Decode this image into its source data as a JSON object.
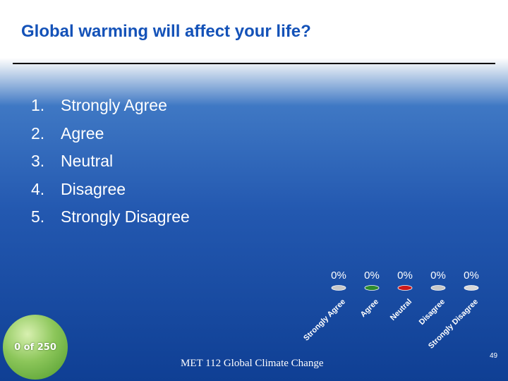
{
  "slide": {
    "title": "Global warming will affect your life?",
    "options": [
      {
        "num": "1.",
        "label": "Strongly Agree"
      },
      {
        "num": "2.",
        "label": "Agree"
      },
      {
        "num": "3.",
        "label": "Neutral"
      },
      {
        "num": "4.",
        "label": "Disagree"
      },
      {
        "num": "5.",
        "label": "Strongly Disagree"
      }
    ],
    "counter": "0 of 250",
    "footer": "MET 112 Global Climate Change",
    "page_number": "49"
  },
  "chart_data": {
    "type": "bar",
    "title": "",
    "categories": [
      "Strongly Agree",
      "Agree",
      "Neutral",
      "Disagree",
      "Strongly Disagree"
    ],
    "values": [
      0,
      0,
      0,
      0,
      0
    ],
    "value_labels": [
      "0%",
      "0%",
      "0%",
      "0%",
      "0%"
    ],
    "series_colors": [
      "#c8c8c8",
      "#2e8b2e",
      "#cc1a1a",
      "#c8c8c8",
      "#d8d8d8"
    ],
    "ylim": [
      0,
      100
    ],
    "unit": "%"
  }
}
